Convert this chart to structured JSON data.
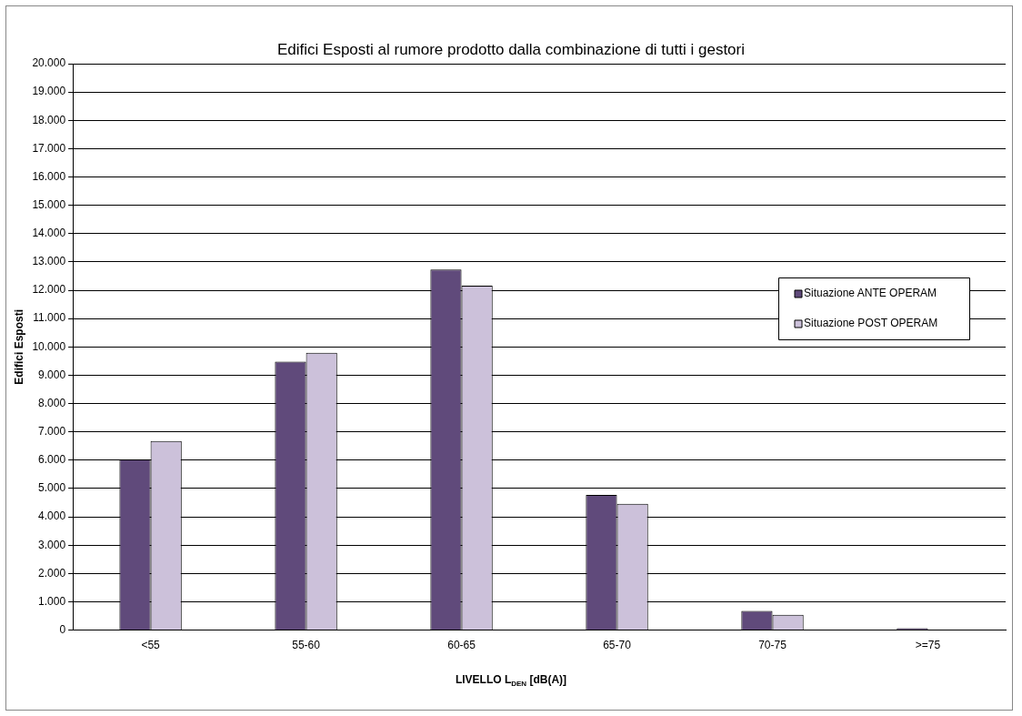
{
  "chart_data": {
    "type": "bar",
    "title": "Edifici Esposti al rumore prodotto dalla combinazione di tutti i gestori",
    "xlabel": "LIVELLO L$_{DEN}$ [dB(A)]",
    "ylabel": "Edifici Esposti",
    "categories": [
      "<55",
      "55-60",
      "60-65",
      "65-70",
      "70-75",
      ">=75"
    ],
    "series": [
      {
        "name": "Situazione ANTE OPERAM",
        "color": "#604a7b",
        "values": [
          6030,
          9480,
          12730,
          4770,
          680,
          70
        ]
      },
      {
        "name": "Situazione POST OPERAM",
        "color": "#ccc1da",
        "values": [
          6680,
          9790,
          12160,
          4460,
          540,
          null
        ]
      }
    ],
    "ylim": [
      0,
      20000
    ],
    "yticks": [
      {
        "value": 0,
        "label": "0"
      },
      {
        "value": 1000,
        "label": "1.000"
      },
      {
        "value": 2000,
        "label": "2.000"
      },
      {
        "value": 3000,
        "label": "3.000"
      },
      {
        "value": 4000,
        "label": "4.000"
      },
      {
        "value": 5000,
        "label": "5.000"
      },
      {
        "value": 6000,
        "label": "6.000"
      },
      {
        "value": 7000,
        "label": "7.000"
      },
      {
        "value": 8000,
        "label": "8.000"
      },
      {
        "value": 9000,
        "label": "9.000"
      },
      {
        "value": 10000,
        "label": "10.000"
      },
      {
        "value": 11000,
        "label": "11.000"
      },
      {
        "value": 12000,
        "label": "12.000"
      },
      {
        "value": 13000,
        "label": "13.000"
      },
      {
        "value": 14000,
        "label": "14.000"
      },
      {
        "value": 15000,
        "label": "15.000"
      },
      {
        "value": 16000,
        "label": "16.000"
      },
      {
        "value": 17000,
        "label": "17.000"
      },
      {
        "value": 18000,
        "label": "18.000"
      },
      {
        "value": 19000,
        "label": "19.000"
      },
      {
        "value": 20000,
        "label": "20.000"
      }
    ],
    "grid": "y",
    "legend": "right"
  }
}
